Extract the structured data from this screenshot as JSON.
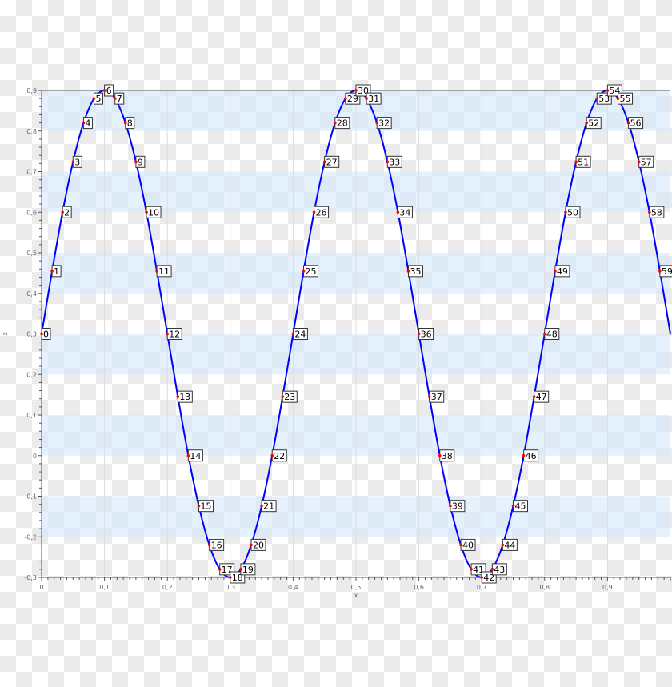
{
  "chart_data": {
    "type": "line",
    "xlabel": "x",
    "ylabel": "z",
    "xlim": [
      0,
      1
    ],
    "ylim": [
      -0.3,
      0.9
    ],
    "xticks": [
      "0",
      "0,1",
      "0,2",
      "0,3",
      "0,4",
      "0,5",
      "0,6",
      "0,7",
      "0,8",
      "0,9"
    ],
    "yticks": [
      "0,9",
      "0,8",
      "0,7",
      "0,6",
      "0,5",
      "0,4",
      "0,3",
      "0,2",
      "0,1",
      "0",
      "-0,1",
      "-0,2",
      "-0,3"
    ],
    "bands": [
      [
        0.8,
        0.9
      ],
      [
        0.6,
        0.7
      ],
      [
        0.4,
        0.5
      ],
      [
        0.2,
        0.3
      ],
      [
        0,
        0.1
      ],
      [
        -0.2,
        -0.1
      ]
    ],
    "grid": true,
    "line_color": "#0000ff",
    "marker_color": "#ff0000",
    "band_color": "#d4eafc",
    "x": [
      0,
      0.0167,
      0.0333,
      0.05,
      0.0667,
      0.0833,
      0.1,
      0.1167,
      0.1333,
      0.15,
      0.1667,
      0.1833,
      0.2,
      0.2167,
      0.2333,
      0.25,
      0.2667,
      0.2833,
      0.3,
      0.3167,
      0.3333,
      0.35,
      0.3667,
      0.3833,
      0.4,
      0.4167,
      0.4333,
      0.45,
      0.4667,
      0.4833,
      0.5,
      0.5167,
      0.5333,
      0.55,
      0.5667,
      0.5833,
      0.6,
      0.6167,
      0.6333,
      0.65,
      0.6667,
      0.6833,
      0.7,
      0.7167,
      0.7333,
      0.75,
      0.7667,
      0.7833,
      0.8,
      0.8167,
      0.8333,
      0.85,
      0.8667,
      0.8833,
      0.9,
      0.9167,
      0.9333,
      0.95,
      0.9667,
      0.9833
    ],
    "z": [
      0.3,
      0.455,
      0.6,
      0.724,
      0.82,
      0.88,
      0.9,
      0.88,
      0.82,
      0.724,
      0.6,
      0.455,
      0.3,
      0.145,
      0.0,
      -0.124,
      -0.22,
      -0.28,
      -0.3,
      -0.28,
      -0.22,
      -0.124,
      0.0,
      0.145,
      0.3,
      0.455,
      0.6,
      0.724,
      0.82,
      0.88,
      0.9,
      0.88,
      0.82,
      0.724,
      0.6,
      0.455,
      0.3,
      0.145,
      0.0,
      -0.124,
      -0.22,
      -0.28,
      -0.3,
      -0.28,
      -0.22,
      -0.124,
      0.0,
      0.145,
      0.3,
      0.455,
      0.6,
      0.724,
      0.82,
      0.88,
      0.9,
      0.88,
      0.82,
      0.724,
      0.6,
      0.455
    ],
    "line_end": [
      1.0,
      0.3
    ],
    "point_labels": [
      "0",
      "1",
      "2",
      "3",
      "4",
      "5",
      "6",
      "7",
      "8",
      "9",
      "10",
      "11",
      "12",
      "13",
      "14",
      "15",
      "16",
      "17",
      "18",
      "19",
      "20",
      "21",
      "22",
      "23",
      "24",
      "25",
      "26",
      "27",
      "28",
      "29",
      "30",
      "31",
      "32",
      "33",
      "34",
      "35",
      "36",
      "37",
      "38",
      "39",
      "40",
      "41",
      "42",
      "43",
      "44",
      "45",
      "46",
      "47",
      "48",
      "49",
      "50",
      "51",
      "52",
      "53",
      "54",
      "55",
      "56",
      "57",
      "58",
      "59"
    ]
  }
}
